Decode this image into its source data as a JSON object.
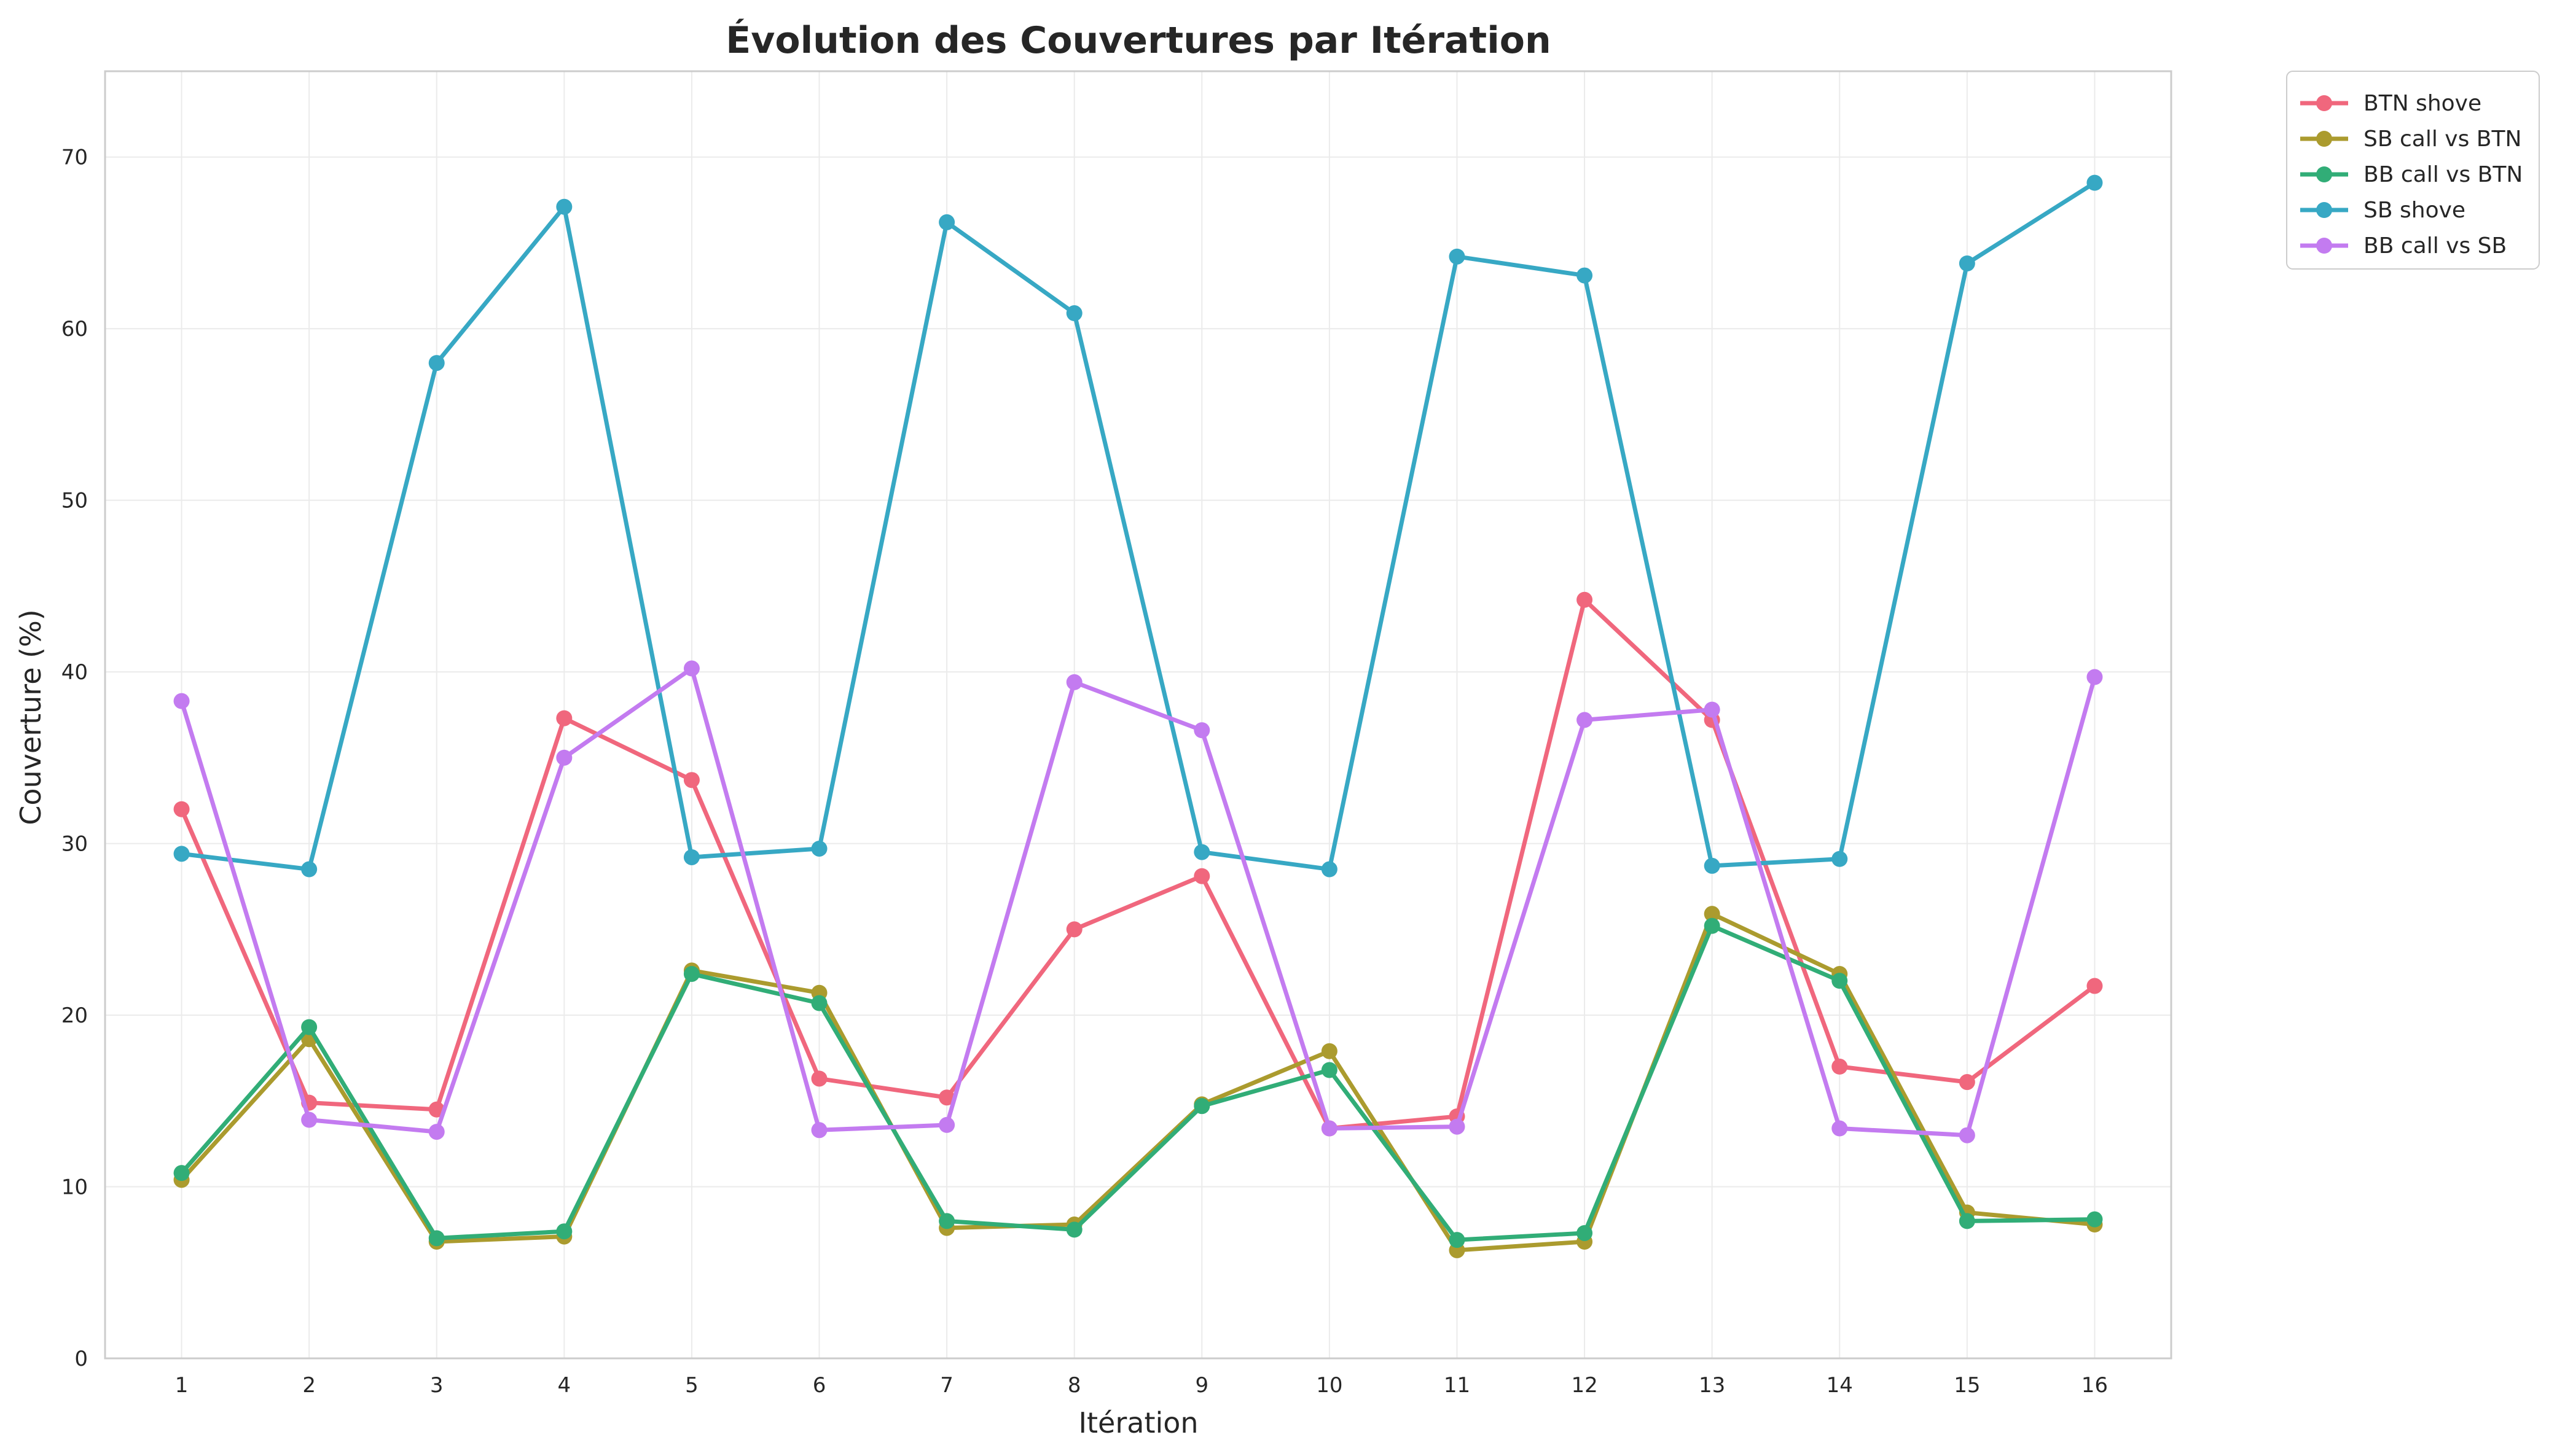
{
  "chart_data": {
    "type": "line",
    "title": "Évolution des Couvertures par Itération",
    "xlabel": "Itération",
    "ylabel": "Couverture (%)",
    "x": [
      1,
      2,
      3,
      4,
      5,
      6,
      7,
      8,
      9,
      10,
      11,
      12,
      13,
      14,
      15,
      16
    ],
    "xlim": [
      0.4,
      16.6
    ],
    "ylim": [
      0,
      75
    ],
    "yticks": [
      0,
      10,
      20,
      30,
      40,
      50,
      60,
      70
    ],
    "grid": true,
    "legend_position": "outside-top-right",
    "series": [
      {
        "name": "BTN shove",
        "color": "#f0677d",
        "values": [
          32.0,
          14.9,
          14.5,
          37.3,
          33.7,
          16.3,
          15.2,
          25.0,
          28.1,
          13.4,
          14.1,
          44.2,
          37.2,
          17.0,
          16.1,
          21.7
        ]
      },
      {
        "name": "SB call vs BTN",
        "color": "#ab9b2e",
        "values": [
          10.4,
          18.6,
          6.8,
          7.1,
          22.6,
          21.3,
          7.6,
          7.8,
          14.8,
          17.9,
          6.3,
          6.8,
          25.9,
          22.4,
          8.5,
          7.8
        ]
      },
      {
        "name": "BB call vs BTN",
        "color": "#31ad77",
        "values": [
          10.8,
          19.3,
          7.0,
          7.4,
          22.4,
          20.7,
          8.0,
          7.5,
          14.7,
          16.8,
          6.9,
          7.3,
          25.2,
          22.0,
          8.0,
          8.1
        ]
      },
      {
        "name": "SB shove",
        "color": "#37a8c4",
        "values": [
          29.4,
          28.5,
          58.0,
          67.1,
          29.2,
          29.7,
          66.2,
          60.9,
          29.5,
          28.5,
          64.2,
          63.1,
          28.7,
          29.1,
          63.8,
          68.5
        ]
      },
      {
        "name": "BB call vs SB",
        "color": "#c37bf0",
        "values": [
          38.3,
          13.9,
          13.2,
          35.0,
          40.2,
          13.3,
          13.6,
          39.4,
          36.6,
          13.4,
          13.5,
          37.2,
          37.8,
          13.4,
          13.0,
          39.7
        ]
      }
    ]
  }
}
